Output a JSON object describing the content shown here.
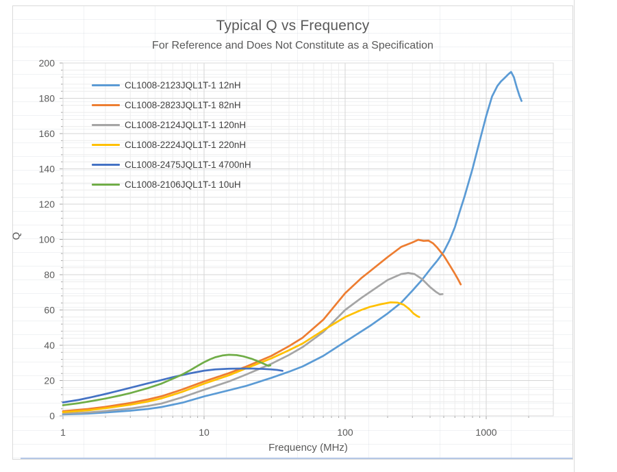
{
  "chart_data": {
    "type": "line",
    "title": "Typical Q vs Frequency",
    "subtitle": "For Reference and Does Not Constitute as a Specification",
    "xlabel": "Frequency (MHz)",
    "ylabel": "Q",
    "x_scale": "log",
    "xlim": [
      1,
      3000
    ],
    "ylim": [
      0,
      200
    ],
    "x_major_ticks": [
      1,
      10,
      100,
      1000
    ],
    "y_major_ticks": [
      0,
      20,
      40,
      60,
      80,
      100,
      120,
      140,
      160,
      180,
      200
    ],
    "y_minor_step": 4,
    "grid": "major and minor gridlines on both axes",
    "legend_position": "inside top-left",
    "series": [
      {
        "name": "CL1008-2123JQL1T-1 12nH",
        "color": "#5B9BD5",
        "points": [
          [
            1,
            0.8
          ],
          [
            1.5,
            1.3
          ],
          [
            2,
            1.9
          ],
          [
            3,
            2.9
          ],
          [
            4,
            3.9
          ],
          [
            5,
            5
          ],
          [
            7,
            7.4
          ],
          [
            10,
            11
          ],
          [
            15,
            14.5
          ],
          [
            20,
            17
          ],
          [
            30,
            21.5
          ],
          [
            40,
            25
          ],
          [
            50,
            28
          ],
          [
            70,
            34
          ],
          [
            100,
            42
          ],
          [
            150,
            51
          ],
          [
            200,
            58
          ],
          [
            250,
            64.2
          ],
          [
            300,
            71
          ],
          [
            350,
            77
          ],
          [
            400,
            83
          ],
          [
            450,
            88
          ],
          [
            500,
            93
          ],
          [
            550,
            99.5
          ],
          [
            600,
            107
          ],
          [
            650,
            116
          ],
          [
            700,
            124
          ],
          [
            800,
            140
          ],
          [
            900,
            156
          ],
          [
            1000,
            170
          ],
          [
            1100,
            181
          ],
          [
            1200,
            187
          ],
          [
            1270,
            189.5
          ],
          [
            1350,
            191.5
          ],
          [
            1430,
            193.5
          ],
          [
            1500,
            195
          ],
          [
            1570,
            192
          ],
          [
            1650,
            186
          ],
          [
            1720,
            181.5
          ],
          [
            1780,
            178.5
          ]
        ]
      },
      {
        "name": "CL1008-2823JQL1T-1 82nH",
        "color": "#ED7D31",
        "points": [
          [
            1,
            2.6
          ],
          [
            1.5,
            3.9
          ],
          [
            2,
            5.1
          ],
          [
            3,
            7.3
          ],
          [
            4,
            9.3
          ],
          [
            5,
            11.1
          ],
          [
            7,
            14.9
          ],
          [
            10,
            19.5
          ],
          [
            15,
            24.2
          ],
          [
            20,
            28
          ],
          [
            30,
            34
          ],
          [
            40,
            39.5
          ],
          [
            50,
            44.3
          ],
          [
            70,
            54.5
          ],
          [
            100,
            69.5
          ],
          [
            130,
            78
          ],
          [
            150,
            82
          ],
          [
            200,
            90
          ],
          [
            250,
            95.8
          ],
          [
            300,
            98.3
          ],
          [
            330,
            99.8
          ],
          [
            360,
            99.2
          ],
          [
            390,
            99.3
          ],
          [
            420,
            97.8
          ],
          [
            450,
            95.3
          ],
          [
            500,
            90.8
          ],
          [
            550,
            85.5
          ],
          [
            600,
            80.5
          ],
          [
            630,
            77.5
          ],
          [
            660,
            74.5
          ]
        ]
      },
      {
        "name": "CL1008-2124JQL1T-1 120nH",
        "color": "#A5A5A5",
        "points": [
          [
            1,
            1.2
          ],
          [
            1.5,
            1.9
          ],
          [
            2,
            2.7
          ],
          [
            3,
            4.1
          ],
          [
            4,
            5.6
          ],
          [
            5,
            7
          ],
          [
            7,
            10.5
          ],
          [
            10,
            14.8
          ],
          [
            15,
            19.5
          ],
          [
            20,
            23.5
          ],
          [
            30,
            29.5
          ],
          [
            40,
            34.5
          ],
          [
            50,
            39
          ],
          [
            70,
            47.5
          ],
          [
            100,
            60
          ],
          [
            130,
            66.8
          ],
          [
            150,
            70.2
          ],
          [
            200,
            77
          ],
          [
            250,
            80.4
          ],
          [
            280,
            81
          ],
          [
            310,
            80.4
          ],
          [
            350,
            77.6
          ],
          [
            400,
            73
          ],
          [
            440,
            70.3
          ],
          [
            470,
            68.8
          ],
          [
            490,
            69
          ]
        ]
      },
      {
        "name": "CL1008-2224JQL1T-1 220nH",
        "color": "#FFC000",
        "points": [
          [
            1,
            2.1
          ],
          [
            1.5,
            3.1
          ],
          [
            2,
            4.3
          ],
          [
            3,
            6.3
          ],
          [
            4,
            8.1
          ],
          [
            5,
            9.9
          ],
          [
            7,
            13.6
          ],
          [
            10,
            18.2
          ],
          [
            15,
            23
          ],
          [
            20,
            27
          ],
          [
            30,
            32.6
          ],
          [
            40,
            37.2
          ],
          [
            50,
            41
          ],
          [
            70,
            48.5
          ],
          [
            100,
            56
          ],
          [
            130,
            60
          ],
          [
            150,
            61.8
          ],
          [
            180,
            63.3
          ],
          [
            210,
            64.3
          ],
          [
            235,
            64.2
          ],
          [
            260,
            63
          ],
          [
            285,
            60.5
          ],
          [
            305,
            58
          ],
          [
            325,
            56.5
          ],
          [
            335,
            56
          ]
        ]
      },
      {
        "name": "CL1008-2475JQL1T-1 4700nH",
        "color": "#4472C4",
        "points": [
          [
            1,
            7.6
          ],
          [
            1.3,
            9.1
          ],
          [
            1.6,
            10.6
          ],
          [
            2,
            12.4
          ],
          [
            2.5,
            14.3
          ],
          [
            3,
            15.9
          ],
          [
            4,
            18.4
          ],
          [
            5,
            20.3
          ],
          [
            6,
            21.9
          ],
          [
            7,
            23.1
          ],
          [
            8,
            24.1
          ],
          [
            10,
            25.6
          ],
          [
            12,
            26.3
          ],
          [
            15,
            26.7
          ],
          [
            18,
            26.8
          ],
          [
            22,
            26.8
          ],
          [
            26,
            26.6
          ],
          [
            30,
            26.3
          ],
          [
            33,
            26
          ],
          [
            36,
            25.5
          ]
        ]
      },
      {
        "name": "CL1008-2106JQL1T-1 10uH",
        "color": "#70AD47",
        "points": [
          [
            1,
            6
          ],
          [
            1.3,
            7.2
          ],
          [
            1.6,
            8.4
          ],
          [
            2,
            9.8
          ],
          [
            2.5,
            11.4
          ],
          [
            3,
            12.9
          ],
          [
            4,
            15.7
          ],
          [
            5,
            18.3
          ],
          [
            6,
            21
          ],
          [
            7,
            23.4
          ],
          [
            8,
            25.9
          ],
          [
            9,
            28.3
          ],
          [
            10,
            30.4
          ],
          [
            11,
            32
          ],
          [
            12,
            33.2
          ],
          [
            13.5,
            34.2
          ],
          [
            15,
            34.6
          ],
          [
            17,
            34.4
          ],
          [
            19,
            33.7
          ],
          [
            22,
            32.2
          ],
          [
            25,
            30.4
          ],
          [
            27,
            29.2
          ],
          [
            28.5,
            28.3
          ],
          [
            29.5,
            28.6
          ]
        ]
      }
    ]
  },
  "colors": {
    "text": "#595959",
    "legend_text": "#404040",
    "grid_major": "#D6D6D6",
    "grid_minor": "#ECECEC",
    "plot_border": "#D9D9D9",
    "axis_line": "#BFBFBF",
    "tick": "#A6A6A6",
    "window_edge_blue": "#B4C7E7",
    "window_divider": "#DADADA"
  }
}
